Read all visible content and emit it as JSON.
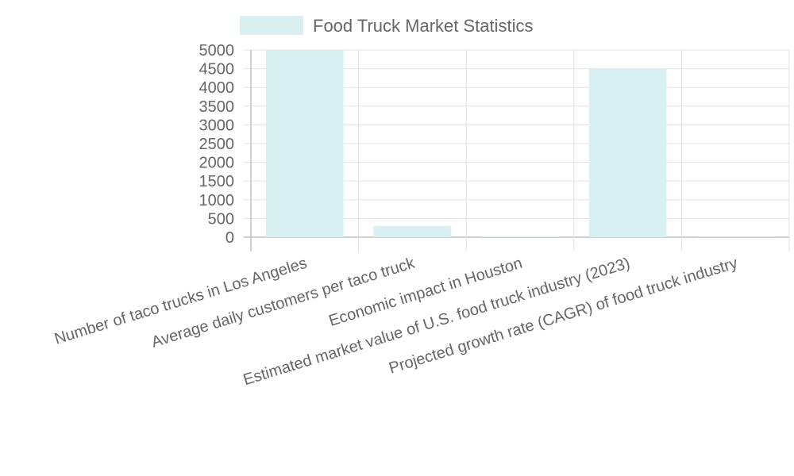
{
  "chart_data": {
    "type": "bar",
    "title": "",
    "xlabel": "",
    "ylabel": "",
    "categories": [
      "Number of taco trucks in Los Angeles",
      "Average daily customers per taco truck",
      "Economic impact in Houston",
      "Estimated market value of U.S. food truck industry (2023)",
      "Projected growth rate (CAGR) of food truck industry"
    ],
    "series": [
      {
        "name": "Food Truck Market Statistics",
        "values": [
          5000,
          300,
          15,
          4500,
          6.8
        ],
        "color": "#d9f0f2"
      }
    ],
    "ylim": [
      0,
      5000
    ],
    "yticks": [
      0,
      500,
      1000,
      1500,
      2000,
      2500,
      3000,
      3500,
      4000,
      4500,
      5000
    ],
    "grid": true,
    "legend_position": "top"
  }
}
